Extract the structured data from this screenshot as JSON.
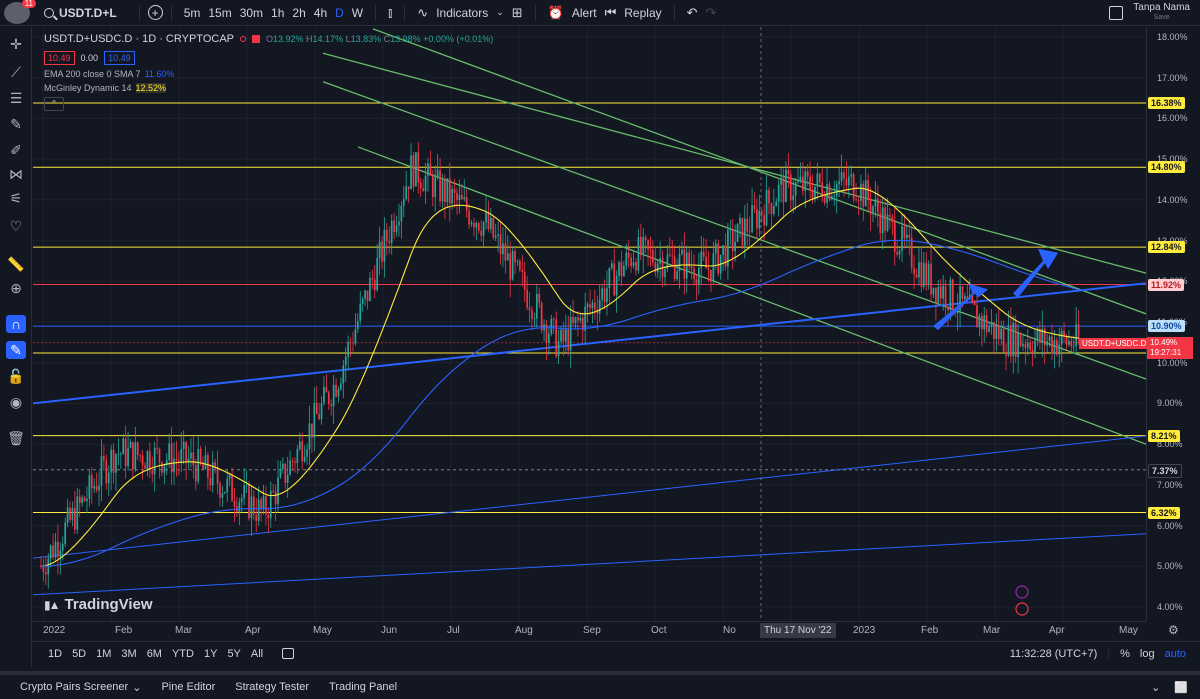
{
  "header": {
    "notifications": "11",
    "symbol": "USDT.D+L",
    "intervals": [
      "5m",
      "15m",
      "30m",
      "1h",
      "2h",
      "4h",
      "D",
      "W"
    ],
    "active_interval": "D",
    "indicators_label": "Indicators",
    "alert_label": "Alert",
    "replay_label": "Replay",
    "user_name": "Tanpa Nama",
    "save_label": "Save"
  },
  "legend": {
    "title": "USDT.D+USDC.D · 1D · CRYPTOCAP",
    "o": "13.92%",
    "h": "14.17%",
    "l": "13.83%",
    "c": "13.98%",
    "change": "+0.00% (+0.01%)",
    "bid": "10.49",
    "spread": "0.00",
    "ask": "10.49",
    "ema_label": "EMA 200 close 0 SMA 7",
    "ema_value": "11.60%",
    "mcg_label": "McGinley Dynamic 14",
    "mcg_value": "12.52%"
  },
  "watermark": "TradingView",
  "price_axis": {
    "ticks": [
      "18.00%",
      "17.00%",
      "16.00%",
      "15.00%",
      "14.00%",
      "13.00%",
      "12.00%",
      "11.00%",
      "10.00%",
      "9.00%",
      "8.00%",
      "7.00%",
      "6.00%",
      "5.00%",
      "4.00%"
    ],
    "labels": {
      "l1638": "16.38%",
      "l1480": "14.80%",
      "l1284": "12.84%",
      "l1192": "11.92%",
      "l1090": "10.90%",
      "l1049": "10.49%",
      "countdown": "19:27:31",
      "l1024": "10.24%",
      "l821": "8.21%",
      "l737": "7.37%",
      "l632": "6.32%"
    },
    "current_symbol": "USDT.D+USDC.D"
  },
  "time_axis": {
    "ticks": [
      "2022",
      "Feb",
      "Mar",
      "Apr",
      "May",
      "Jun",
      "Jul",
      "Aug",
      "Sep",
      "Oct",
      "No",
      "c",
      "2023",
      "Feb",
      "Mar",
      "Apr",
      "May"
    ],
    "crosshair": "Thu 17 Nov '22"
  },
  "range_bar": {
    "ranges": [
      "1D",
      "5D",
      "1M",
      "3M",
      "6M",
      "YTD",
      "1Y",
      "5Y",
      "All"
    ],
    "clock": "11:32:28 (UTC+7)",
    "percent": "%",
    "log": "log",
    "auto": "auto"
  },
  "bottom_bar": {
    "items": [
      "Crypto Pairs Screener",
      "Pine Editor",
      "Strategy Tester",
      "Trading Panel"
    ]
  },
  "colors": {
    "background": "#131722",
    "bull": "#26a69a",
    "bear": "#f23645",
    "horizontal_yellow": "#ffeb3b",
    "channel_green": "#66bb6a",
    "trend_blue": "#2962ff"
  },
  "chart_data": {
    "type": "line",
    "x": [
      "2022-01",
      "2022-02",
      "2022-03",
      "2022-04",
      "2022-05",
      "2022-06",
      "2022-07",
      "2022-08",
      "2022-09",
      "2022-10",
      "2022-11",
      "2022-12",
      "2023-01",
      "2023-02",
      "2023-03"
    ],
    "series": [
      {
        "values": [
          5.0,
          7.8,
          7.6,
          6.3,
          9.6,
          14.8,
          13.4,
          10.4,
          12.7,
          12.3,
          14.3,
          14.4,
          12.0,
          10.6,
          10.5
        ]
      }
    ],
    "horizontal_levels": [
      16.38,
      14.8,
      12.84,
      11.92,
      10.9,
      10.24,
      8.21,
      7.37,
      6.32
    ],
    "ylim": [
      4.0,
      18.0
    ]
  }
}
